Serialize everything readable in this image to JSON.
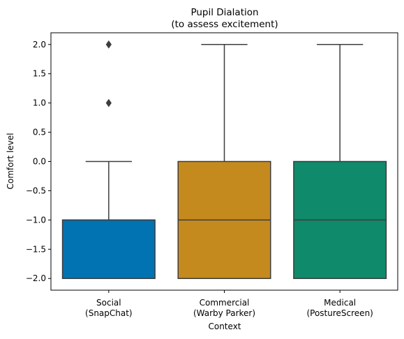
{
  "chart_data": {
    "type": "box",
    "title_lines": [
      "Pupil Dialation",
      "(to assess excitement)"
    ],
    "xlabel": "Context",
    "ylabel": "Comfort level",
    "ylim": [
      -2.2,
      2.2
    ],
    "yticks": [
      2.0,
      1.5,
      1.0,
      0.5,
      0.0,
      -0.5,
      -1.0,
      -1.5,
      -2.0
    ],
    "ytick_labels": [
      "2.0",
      "1.5",
      "1.0",
      "0.5",
      "0.0",
      "−0.5",
      "−1.0",
      "−1.5",
      "−2.0"
    ],
    "grid": false,
    "categories": [
      {
        "label_lines": [
          "Social",
          "(SnapChat)"
        ],
        "color": "#0173b2",
        "q1": -2.0,
        "median": -1.0,
        "q3": -1.0,
        "whisker_low": -2.0,
        "whisker_high": 0.0,
        "outliers": [
          1.0,
          2.0
        ]
      },
      {
        "label_lines": [
          "Commercial",
          "(Warby Parker)"
        ],
        "color": "#c58a1e",
        "q1": -2.0,
        "median": -1.0,
        "q3": 0.0,
        "whisker_low": -2.0,
        "whisker_high": 2.0,
        "outliers": []
      },
      {
        "label_lines": [
          "Medical",
          "(PostureScreen)"
        ],
        "color": "#0f8a6a",
        "q1": -2.0,
        "median": -1.0,
        "q3": 0.0,
        "whisker_low": -2.0,
        "whisker_high": 2.0,
        "outliers": []
      }
    ]
  }
}
